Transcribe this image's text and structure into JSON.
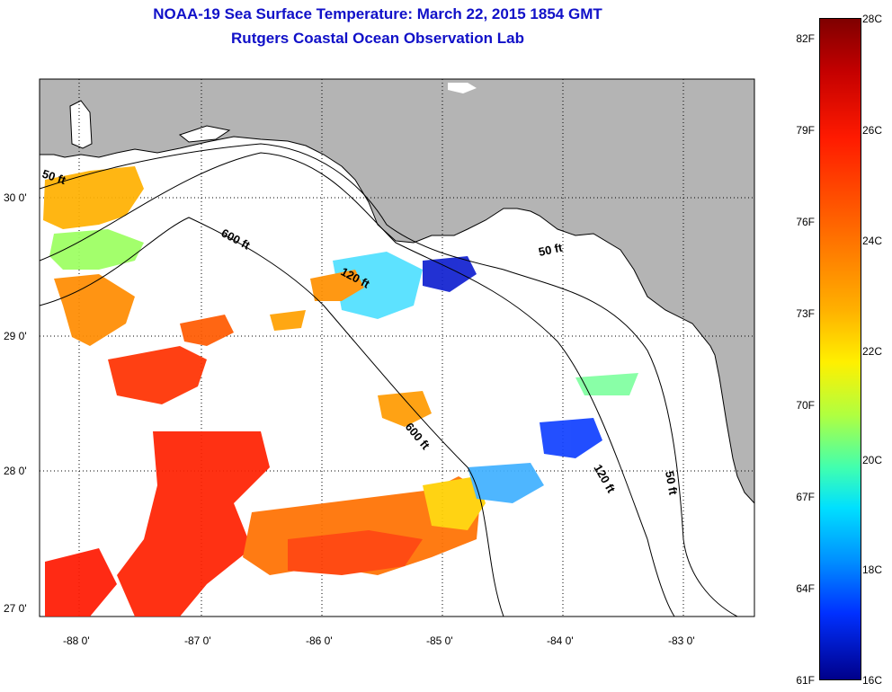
{
  "title": {
    "line1": "NOAA-19 Sea Surface Temperature:  March 22, 2015 1854 GMT",
    "line2": "Rutgers Coastal Ocean Observation Lab"
  },
  "map": {
    "lat_labels": [
      "30 0'",
      "29 0'",
      "28 0'",
      "27 0'"
    ],
    "lon_labels": [
      "-88 0'",
      "-87 0'",
      "-86 0'",
      "-85 0'",
      "-84 0'",
      "-83 0'"
    ],
    "contour_labels": [
      "50 ft",
      "600 ft",
      "120 ft",
      "50 ft",
      "600 ft",
      "120 ft",
      "50 ft"
    ],
    "land_color": "#b4b4b4",
    "water_color": "#ffffff"
  },
  "colorbar": {
    "fahrenheit": [
      "82F",
      "79F",
      "76F",
      "73F",
      "70F",
      "67F",
      "64F",
      "61F"
    ],
    "celsius": [
      "28C",
      "26C",
      "24C",
      "22C",
      "20C",
      "18C",
      "16C"
    ]
  }
}
